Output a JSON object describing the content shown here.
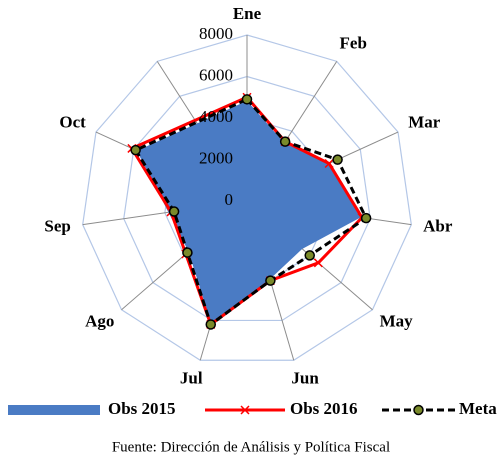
{
  "chart_data": {
    "type": "radar",
    "categories": [
      "Ene",
      "Feb",
      "Mar",
      "Abr",
      "May",
      "Jun",
      "Jul",
      "Ago",
      "Sep",
      "Oct",
      null
    ],
    "series": [
      {
        "name": "Obs 2015",
        "color": "#4a7bc4",
        "values": [
          4800,
          3300,
          4300,
          5500,
          3500,
          3900,
          6100,
          3700,
          3800,
          5800,
          null
        ]
      },
      {
        "name": "Obs 2016",
        "color": "#ff0000",
        "values": [
          5000,
          3400,
          4350,
          5600,
          4550,
          4000,
          6200,
          3900,
          3700,
          6100,
          null
        ]
      },
      {
        "name": "Meta",
        "color": "#000000",
        "values": [
          4900,
          3400,
          4800,
          5800,
          4000,
          4000,
          6200,
          3800,
          3550,
          5900,
          null
        ]
      }
    ],
    "ylim": [
      0,
      8000
    ],
    "yticks": [
      0,
      2000,
      4000,
      6000,
      8000
    ],
    "grid": true,
    "source": "Fuente: Dirección de Análisis y Política Fiscal"
  }
}
